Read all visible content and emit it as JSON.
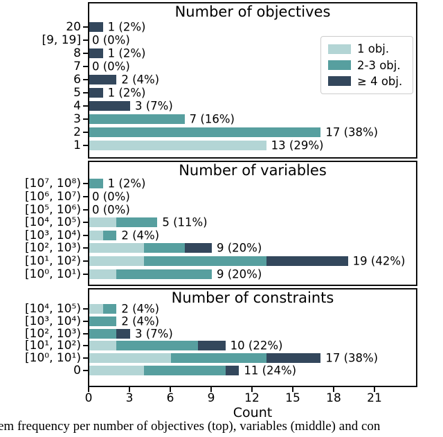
{
  "figure": {
    "xlabel": "Count",
    "x_ticks": [
      0,
      3,
      6,
      9,
      12,
      15,
      18,
      21
    ],
    "x_max": 24,
    "caption": "em frequency per number of objectives (top), variables (middle) and con"
  },
  "colors": {
    "light": "#b3d5d5",
    "medium": "#579f9f",
    "dark": "#33475c",
    "frame": "#0d0d0d",
    "legend_border": "#cccccc"
  },
  "legend": {
    "items": [
      {
        "label": "1 obj.",
        "color": "light"
      },
      {
        "label": "2-3 obj.",
        "color": "medium"
      },
      {
        "label": "≥ 4 obj.",
        "color": "dark"
      }
    ]
  },
  "chart_data": [
    {
      "type": "bar",
      "orientation": "horizontal",
      "title": "Number of objectives",
      "xlabel": "Count",
      "xlim": [
        0,
        24
      ],
      "grid": false,
      "legend_position": "upper right",
      "categories": [
        "20",
        "[9, 19]",
        "8",
        "7",
        "6",
        "5",
        "4",
        "3",
        "2",
        "1"
      ],
      "series": [
        {
          "name": "1 obj.",
          "color": "light",
          "values": [
            0,
            0,
            0,
            0,
            0,
            0,
            0,
            0,
            0,
            13
          ]
        },
        {
          "name": "2-3 obj.",
          "color": "medium",
          "values": [
            0,
            0,
            0,
            0,
            0,
            0,
            0,
            7,
            17,
            0
          ]
        },
        {
          "name": "≥ 4 obj.",
          "color": "dark",
          "values": [
            1,
            0,
            1,
            0,
            2,
            1,
            3,
            0,
            0,
            0
          ]
        }
      ],
      "totals": [
        1,
        0,
        1,
        0,
        2,
        1,
        3,
        7,
        17,
        13
      ],
      "bar_labels": [
        "1 (2%)",
        "0 (0%)",
        "1 (2%)",
        "0 (0%)",
        "2 (4%)",
        "1 (2%)",
        "3 (7%)",
        "7 (16%)",
        "17 (38%)",
        "13 (29%)"
      ]
    },
    {
      "type": "bar",
      "orientation": "horizontal",
      "title": "Number of variables",
      "xlim": [
        0,
        24
      ],
      "grid": false,
      "categories": [
        "[10⁷, 10⁸)",
        "[10⁶, 10⁷)",
        "[10⁵, 10⁶)",
        "[10⁴, 10⁵)",
        "[10³, 10⁴)",
        "[10², 10³)",
        "[10¹, 10²)",
        "[10⁰, 10¹)"
      ],
      "series": [
        {
          "name": "1 obj.",
          "color": "light",
          "values": [
            0,
            0,
            0,
            2,
            1,
            4,
            4,
            2
          ]
        },
        {
          "name": "2-3 obj.",
          "color": "medium",
          "values": [
            1,
            0,
            0,
            3,
            1,
            3,
            9,
            7
          ]
        },
        {
          "name": "≥ 4 obj.",
          "color": "dark",
          "values": [
            0,
            0,
            0,
            0,
            0,
            2,
            6,
            0
          ]
        }
      ],
      "totals": [
        1,
        0,
        0,
        5,
        2,
        9,
        19,
        9
      ],
      "bar_labels": [
        "1 (2%)",
        "0 (0%)",
        "0 (0%)",
        "5 (11%)",
        "2 (4%)",
        "9 (20%)",
        "19 (42%)",
        "9 (20%)"
      ]
    },
    {
      "type": "bar",
      "orientation": "horizontal",
      "title": "Number of constraints",
      "xlim": [
        0,
        24
      ],
      "grid": false,
      "categories": [
        "[10⁴, 10⁵)",
        "[10³, 10⁴)",
        "[10², 10³)",
        "[10¹, 10²)",
        "[10⁰, 10¹)",
        "0"
      ],
      "series": [
        {
          "name": "1 obj.",
          "color": "light",
          "values": [
            1,
            0,
            0,
            2,
            6,
            4
          ]
        },
        {
          "name": "2-3 obj.",
          "color": "medium",
          "values": [
            1,
            2,
            2,
            6,
            7,
            6
          ]
        },
        {
          "name": "≥ 4 obj.",
          "color": "dark",
          "values": [
            0,
            0,
            1,
            2,
            4,
            1
          ]
        }
      ],
      "totals": [
        2,
        2,
        3,
        10,
        17,
        11
      ],
      "bar_labels": [
        "2 (4%)",
        "2 (4%)",
        "3 (7%)",
        "10 (22%)",
        "17 (38%)",
        "11 (24%)"
      ]
    }
  ]
}
